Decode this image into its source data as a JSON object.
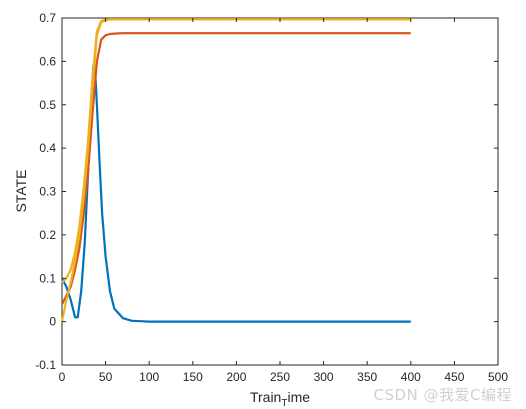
{
  "chart_data": {
    "type": "line",
    "title": "",
    "xlabel": "Train_Time",
    "xlabel_main": "Train",
    "xlabel_sub": "T",
    "xlabel_rest": "ime",
    "ylabel": "STATE",
    "xlim": [
      0,
      500
    ],
    "ylim": [
      -0.1,
      0.7
    ],
    "xticks": [
      0,
      50,
      100,
      150,
      200,
      250,
      300,
      350,
      400,
      450,
      500
    ],
    "yticks": [
      -0.1,
      0,
      0.1,
      0.2,
      0.3,
      0.4,
      0.5,
      0.6,
      0.7
    ],
    "ytick_labels": [
      "-0.1",
      "0",
      "0.1",
      "0.2",
      "0.3",
      "0.4",
      "0.5",
      "0.6",
      "0.7"
    ],
    "grid": false,
    "legend": "none",
    "series": [
      {
        "color": "#0072BD",
        "x": [
          0,
          5,
          10,
          15,
          18,
          22,
          26,
          30,
          33,
          36,
          38,
          40,
          43,
          46,
          50,
          55,
          60,
          70,
          80,
          90,
          100,
          150,
          200,
          300,
          400
        ],
        "y": [
          0.1,
          0.08,
          0.05,
          0.01,
          0.01,
          0.07,
          0.18,
          0.35,
          0.5,
          0.59,
          0.58,
          0.5,
          0.37,
          0.25,
          0.15,
          0.07,
          0.03,
          0.008,
          0.002,
          0.001,
          0,
          0,
          0,
          0,
          0
        ]
      },
      {
        "color": "#D95319",
        "x": [
          0,
          5,
          10,
          15,
          20,
          25,
          30,
          35,
          40,
          45,
          50,
          55,
          60,
          70,
          100,
          200,
          300,
          400
        ],
        "y": [
          0.04,
          0.06,
          0.08,
          0.12,
          0.17,
          0.25,
          0.35,
          0.48,
          0.6,
          0.65,
          0.66,
          0.663,
          0.664,
          0.665,
          0.665,
          0.665,
          0.665,
          0.665
        ]
      },
      {
        "color": "#EDB120",
        "x": [
          0,
          5,
          10,
          15,
          20,
          25,
          30,
          35,
          40,
          45,
          50,
          55,
          60,
          70,
          100,
          200,
          300,
          400
        ],
        "y": [
          0.0,
          0.05,
          0.09,
          0.14,
          0.2,
          0.29,
          0.4,
          0.54,
          0.66,
          0.69,
          0.695,
          0.697,
          0.697,
          0.697,
          0.697,
          0.697,
          0.697,
          0.697
        ]
      },
      {
        "color": "#EDB120",
        "x": [
          0,
          5,
          10,
          15,
          20,
          25,
          30,
          35,
          40,
          45,
          50,
          55,
          60,
          70,
          100,
          200,
          300,
          400
        ],
        "y": [
          0.09,
          0.1,
          0.12,
          0.16,
          0.22,
          0.31,
          0.42,
          0.56,
          0.67,
          0.693,
          0.697,
          0.697,
          0.697,
          0.697,
          0.697,
          0.697,
          0.697,
          0.697
        ]
      }
    ]
  },
  "watermark": "CSDN @我爱C编程"
}
